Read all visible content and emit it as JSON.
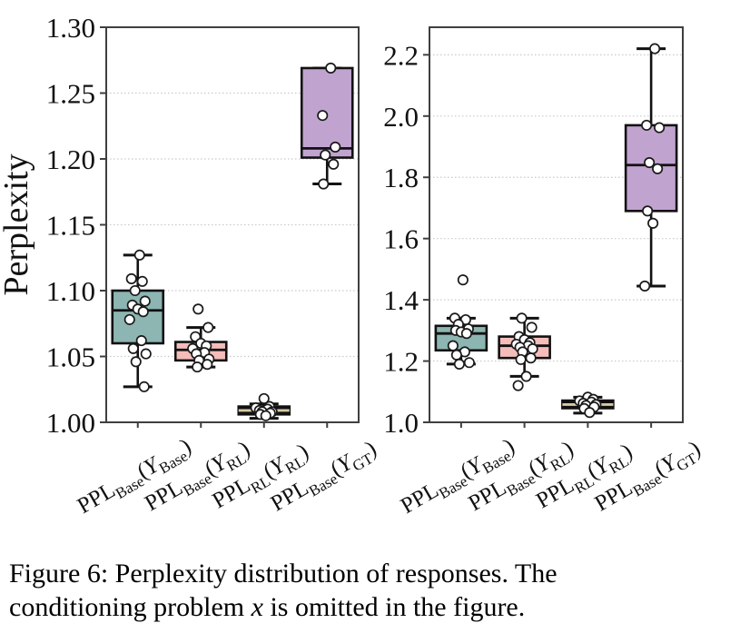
{
  "caption": {
    "line1": "Figure 6: Perplexity distribution of responses. The",
    "line2_pre": "conditioning problem ",
    "line2_math": "x",
    "line2_post": " is omitted in the figure."
  },
  "chart_data": [
    {
      "type": "box",
      "title": "",
      "xlabel": "",
      "ylabel": "Perplexity",
      "ylim": [
        1.0,
        1.3
      ],
      "ytick_values": [
        1.0,
        1.05,
        1.1,
        1.15,
        1.2,
        1.25,
        1.3
      ],
      "ytick_labels": [
        "1.00",
        "1.05",
        "1.10",
        "1.15",
        "1.20",
        "1.25",
        "1.30"
      ],
      "grid": "horizontal dotted",
      "legend": "none",
      "categories": [
        "PPL_Base(Y_Base)",
        "PPL_Base(Y_RL)",
        "PPL_RL(Y_RL)",
        "PPL_Base(Y_GT)"
      ],
      "category_parts": [
        [
          {
            "t": "PPL"
          },
          {
            "t": "Base",
            "sub": true
          },
          {
            "t": "("
          },
          {
            "t": "Y",
            "it": true
          },
          {
            "t": "Base",
            "sub": true
          },
          {
            "t": ")"
          }
        ],
        [
          {
            "t": "PPL"
          },
          {
            "t": "Base",
            "sub": true
          },
          {
            "t": "("
          },
          {
            "t": "Y",
            "it": true
          },
          {
            "t": "RL",
            "sub": true
          },
          {
            "t": ")"
          }
        ],
        [
          {
            "t": "PPL"
          },
          {
            "t": "RL",
            "sub": true
          },
          {
            "t": "("
          },
          {
            "t": "Y",
            "it": true
          },
          {
            "t": "RL",
            "sub": true
          },
          {
            "t": ")"
          }
        ],
        [
          {
            "t": "PPL"
          },
          {
            "t": "Base",
            "sub": true
          },
          {
            "t": "("
          },
          {
            "t": "Y",
            "it": true
          },
          {
            "t": "GT",
            "sub": true
          },
          {
            "t": ")"
          }
        ]
      ],
      "series": [
        {
          "name": "PPL_Base(Y_Base)",
          "color": "#8db5b2",
          "median_color": "#111111",
          "whislo": 1.027,
          "q1": 1.06,
          "med": 1.085,
          "q3": 1.1,
          "whishi": 1.127,
          "outliers": [],
          "points": [
            1.127,
            1.109,
            1.107,
            1.1,
            1.092,
            1.089,
            1.086,
            1.084,
            1.078,
            1.062,
            1.056,
            1.052,
            1.046,
            1.027
          ]
        },
        {
          "name": "PPL_Base(Y_RL)",
          "color": "#f4bdba",
          "median_color": "#111111",
          "whislo": 1.042,
          "q1": 1.047,
          "med": 1.055,
          "q3": 1.061,
          "whishi": 1.072,
          "outliers": [
            1.086
          ],
          "points": [
            1.086,
            1.072,
            1.065,
            1.06,
            1.058,
            1.056,
            1.053,
            1.052,
            1.048,
            1.047,
            1.044,
            1.042
          ]
        },
        {
          "name": "PPL_RL(Y_RL)",
          "color": "#111111",
          "median_color": "#d8c9a4",
          "whislo": 1.003,
          "q1": 1.006,
          "med": 1.009,
          "q3": 1.012,
          "whishi": 1.014,
          "outliers": [
            1.018
          ],
          "points": [
            1.018,
            1.012,
            1.011,
            1.01,
            1.009,
            1.008,
            1.008,
            1.007,
            1.006,
            1.005
          ]
        },
        {
          "name": "PPL_Base(Y_GT)",
          "color": "#c1a3d0",
          "median_color": "#111111",
          "whislo": 1.181,
          "q1": 1.201,
          "med": 1.208,
          "q3": 1.269,
          "whishi": 1.269,
          "outliers": [],
          "points": [
            1.269,
            1.233,
            1.209,
            1.203,
            1.196,
            1.181
          ]
        }
      ]
    },
    {
      "type": "box",
      "title": "",
      "xlabel": "",
      "ylabel": "",
      "ylim": [
        1.0,
        2.29
      ],
      "ytick_values": [
        1.0,
        1.2,
        1.4,
        1.6,
        1.8,
        2.0,
        2.2
      ],
      "ytick_labels": [
        "1.0",
        "1.2",
        "1.4",
        "1.6",
        "1.8",
        "2.0",
        "2.2"
      ],
      "grid": "horizontal dotted",
      "legend": "none",
      "categories": [
        "PPL_Base(Y_Base)",
        "PPL_Base(Y_RL)",
        "PPL_RL(Y_RL)",
        "PPL_Base(Y_GT)"
      ],
      "category_parts": [
        [
          {
            "t": "PPL"
          },
          {
            "t": "Base",
            "sub": true
          },
          {
            "t": "("
          },
          {
            "t": "Y",
            "it": true
          },
          {
            "t": "Base",
            "sub": true
          },
          {
            "t": ")"
          }
        ],
        [
          {
            "t": "PPL"
          },
          {
            "t": "Base",
            "sub": true
          },
          {
            "t": "("
          },
          {
            "t": "Y",
            "it": true
          },
          {
            "t": "RL",
            "sub": true
          },
          {
            "t": ")"
          }
        ],
        [
          {
            "t": "PPL"
          },
          {
            "t": "RL",
            "sub": true
          },
          {
            "t": "("
          },
          {
            "t": "Y",
            "it": true
          },
          {
            "t": "RL",
            "sub": true
          },
          {
            "t": ")"
          }
        ],
        [
          {
            "t": "PPL"
          },
          {
            "t": "Base",
            "sub": true
          },
          {
            "t": "("
          },
          {
            "t": "Y",
            "it": true
          },
          {
            "t": "GT",
            "sub": true
          },
          {
            "t": ")"
          }
        ]
      ],
      "series": [
        {
          "name": "PPL_Base(Y_Base)",
          "color": "#8db5b2",
          "median_color": "#111111",
          "whislo": 1.19,
          "q1": 1.235,
          "med": 1.29,
          "q3": 1.315,
          "whishi": 1.34,
          "outliers": [
            1.465
          ],
          "points": [
            1.465,
            1.34,
            1.335,
            1.32,
            1.305,
            1.3,
            1.295,
            1.29,
            1.25,
            1.23,
            1.22,
            1.195,
            1.19
          ]
        },
        {
          "name": "PPL_Base(Y_RL)",
          "color": "#f4bdba",
          "median_color": "#111111",
          "whislo": 1.15,
          "q1": 1.21,
          "med": 1.25,
          "q3": 1.28,
          "whishi": 1.34,
          "outliers": [
            1.12
          ],
          "points": [
            1.34,
            1.31,
            1.28,
            1.27,
            1.26,
            1.255,
            1.25,
            1.245,
            1.24,
            1.23,
            1.21,
            1.205,
            1.15,
            1.12
          ]
        },
        {
          "name": "PPL_RL(Y_RL)",
          "color": "#111111",
          "median_color": "#d8c9a4",
          "whislo": 1.03,
          "q1": 1.046,
          "med": 1.058,
          "q3": 1.071,
          "whishi": 1.082,
          "outliers": [],
          "points": [
            1.082,
            1.075,
            1.07,
            1.066,
            1.062,
            1.058,
            1.055,
            1.05,
            1.045,
            1.032
          ]
        },
        {
          "name": "PPL_Base(Y_GT)",
          "color": "#c1a3d0",
          "median_color": "#111111",
          "whislo": 1.445,
          "q1": 1.69,
          "med": 1.84,
          "q3": 1.97,
          "whishi": 2.22,
          "outliers": [],
          "points": [
            2.22,
            1.97,
            1.962,
            1.848,
            1.828,
            1.69,
            1.65,
            1.445
          ]
        }
      ]
    }
  ]
}
